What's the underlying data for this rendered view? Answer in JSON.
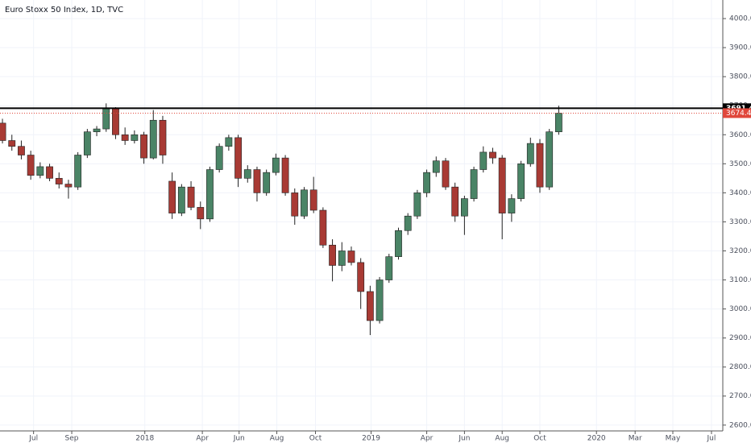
{
  "chart_data": {
    "type": "candlestick",
    "title": "Euro Stoxx 50 Index, 1D, TVC",
    "categories": [
      null,
      null,
      null,
      null,
      null,
      null,
      null,
      null,
      null,
      null,
      null,
      null,
      null,
      null,
      null,
      null,
      null,
      null,
      null,
      null,
      null,
      null,
      null,
      null,
      null,
      null,
      null,
      null,
      null,
      null,
      null,
      null,
      null,
      null,
      null,
      null,
      null,
      null,
      null,
      null,
      null,
      null,
      null,
      null,
      null,
      null,
      null,
      null,
      null,
      null,
      null,
      null,
      null,
      null,
      null,
      null,
      null,
      null,
      null,
      null
    ],
    "open": [
      3640,
      3580,
      3560,
      3530,
      3460,
      3490,
      3450,
      3430,
      3420,
      3530,
      3610,
      3620,
      3690,
      3600,
      3580,
      3600,
      3520,
      3650,
      3440,
      3330,
      3420,
      3350,
      3310,
      3480,
      3560,
      3590,
      3450,
      3480,
      3400,
      3470,
      3520,
      3400,
      3320,
      3410,
      3340,
      3220,
      3150,
      3200,
      3160,
      3060,
      2960,
      3100,
      3180,
      3270,
      3320,
      3400,
      3470,
      3510,
      3420,
      3320,
      3380,
      3480,
      3540,
      3520,
      3330,
      3380,
      3500,
      3570,
      3420,
      3610
    ],
    "high": [
      3655,
      3600,
      3580,
      3545,
      3505,
      3500,
      3470,
      3445,
      3540,
      3620,
      3630,
      3708,
      3695,
      3625,
      3615,
      3610,
      3685,
      3665,
      3470,
      3430,
      3440,
      3370,
      3490,
      3570,
      3600,
      3600,
      3495,
      3490,
      3480,
      3535,
      3530,
      3415,
      3420,
      3455,
      3350,
      3240,
      3230,
      3215,
      3175,
      3080,
      3110,
      3190,
      3280,
      3330,
      3410,
      3480,
      3525,
      3520,
      3435,
      3390,
      3490,
      3560,
      3555,
      3530,
      3395,
      3510,
      3590,
      3585,
      3620,
      3700
    ],
    "low": [
      3570,
      3545,
      3515,
      3445,
      3450,
      3440,
      3415,
      3380,
      3410,
      3520,
      3595,
      3610,
      3585,
      3565,
      3570,
      3500,
      3515,
      3500,
      3310,
      3320,
      3340,
      3275,
      3300,
      3470,
      3545,
      3420,
      3435,
      3370,
      3390,
      3460,
      3390,
      3290,
      3310,
      3330,
      3210,
      3095,
      3130,
      3150,
      3000,
      2910,
      2950,
      3090,
      3170,
      3255,
      3310,
      3385,
      3455,
      3410,
      3300,
      3255,
      3370,
      3470,
      3500,
      3240,
      3300,
      3370,
      3490,
      3400,
      3410,
      3600
    ],
    "close": [
      3580,
      3560,
      3530,
      3460,
      3490,
      3450,
      3430,
      3420,
      3530,
      3610,
      3620,
      3690,
      3600,
      3580,
      3600,
      3520,
      3650,
      3530,
      3330,
      3420,
      3350,
      3310,
      3480,
      3560,
      3590,
      3450,
      3480,
      3400,
      3470,
      3520,
      3400,
      3320,
      3410,
      3340,
      3220,
      3150,
      3200,
      3160,
      3060,
      2960,
      3100,
      3180,
      3270,
      3320,
      3400,
      3470,
      3510,
      3420,
      3320,
      3380,
      3480,
      3540,
      3520,
      3330,
      3380,
      3500,
      3570,
      3420,
      3610,
      3674.4
    ],
    "up_color": "#4a8466",
    "down_color": "#a83a34",
    "xlim": [
      -0.26,
      76.4
    ],
    "xticks": [
      {
        "value": 3.3,
        "label": "Jul"
      },
      {
        "value": 7.35,
        "label": "Sep"
      },
      {
        "value": 15.1,
        "label": "2018"
      },
      {
        "value": 21.2,
        "label": "Apr"
      },
      {
        "value": 25.1,
        "label": "Jun"
      },
      {
        "value": 29.1,
        "label": "Aug"
      },
      {
        "value": 33.2,
        "label": "Oct"
      },
      {
        "value": 39.1,
        "label": "2019"
      },
      {
        "value": 45.0,
        "label": "Apr"
      },
      {
        "value": 49.0,
        "label": "Jun"
      },
      {
        "value": 53.0,
        "label": "Aug"
      },
      {
        "value": 57.0,
        "label": "Oct"
      },
      {
        "value": 63.0,
        "label": "2020"
      },
      {
        "value": 67.1,
        "label": "Mar"
      },
      {
        "value": 71.1,
        "label": "May"
      },
      {
        "value": 75.2,
        "label": "Jul"
      }
    ],
    "ylim": [
      2580,
      4064
    ],
    "yticks": [
      {
        "value": 2600,
        "label": "2600.0"
      },
      {
        "value": 2700,
        "label": "2700.0"
      },
      {
        "value": 2800,
        "label": "2800.0"
      },
      {
        "value": 2900,
        "label": "2900.0"
      },
      {
        "value": 3000,
        "label": "3000.0"
      },
      {
        "value": 3100,
        "label": "3100.0"
      },
      {
        "value": 3200,
        "label": "3200.0"
      },
      {
        "value": 3300,
        "label": "3300.0"
      },
      {
        "value": 3400,
        "label": "3400.0"
      },
      {
        "value": 3500,
        "label": "3500.0"
      },
      {
        "value": 3600,
        "label": "3600.0"
      },
      {
        "value": 3700,
        "label": "3700.0"
      },
      {
        "value": 3800,
        "label": "3800.0"
      },
      {
        "value": 3900,
        "label": "3900.0"
      },
      {
        "value": 4000,
        "label": "4000.0"
      }
    ],
    "grid": true,
    "horizontal_line": {
      "value": 3691.4,
      "color": "#000000"
    },
    "last_price": {
      "value": 3674.4,
      "color": "#e0473b"
    }
  }
}
